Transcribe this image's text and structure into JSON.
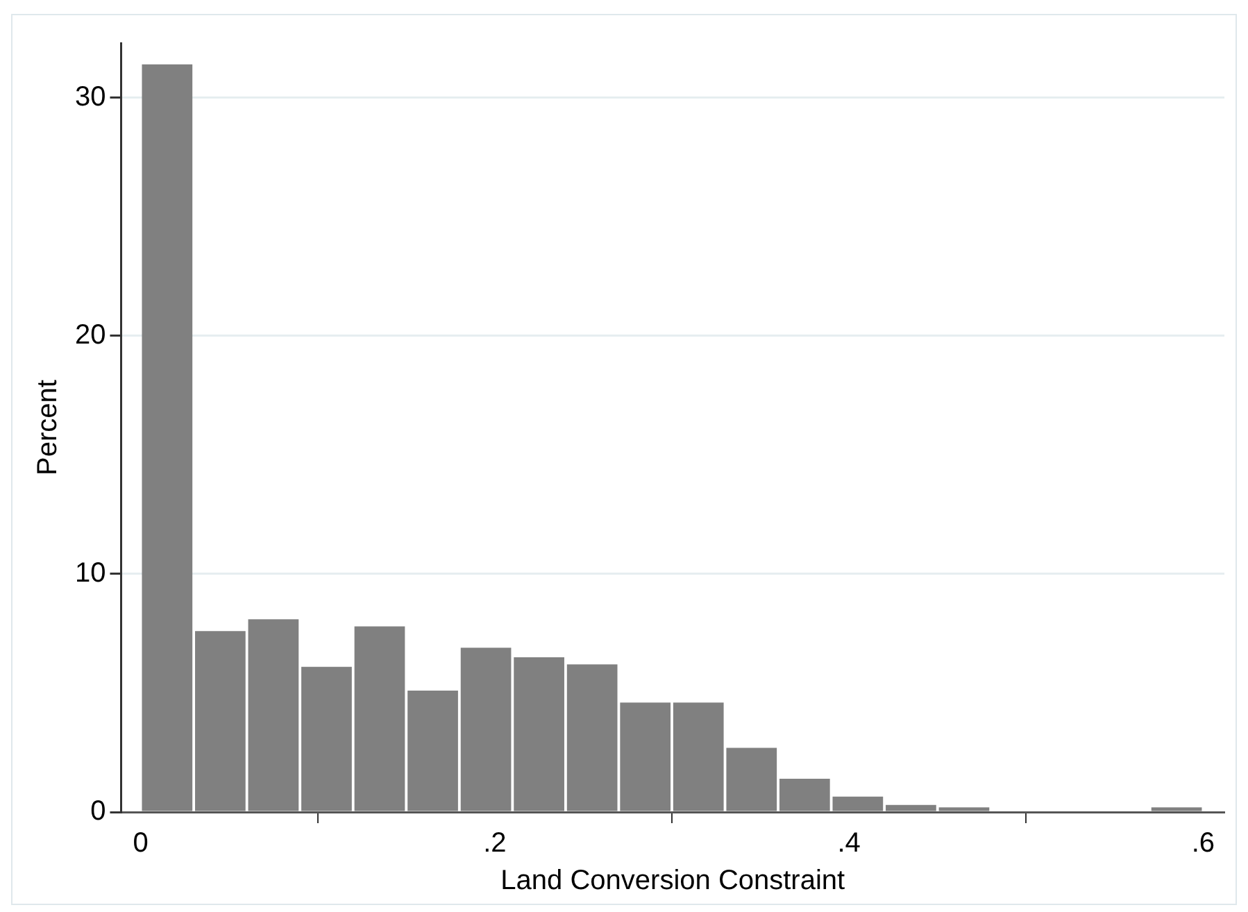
{
  "chart_data": {
    "type": "histogram",
    "xlabel": "Land Conversion Constraint",
    "ylabel": "Percent",
    "bins": [
      0,
      0.03,
      0.06,
      0.09,
      0.12,
      0.15,
      0.18,
      0.21,
      0.24,
      0.27,
      0.3,
      0.33,
      0.36,
      0.39,
      0.42,
      0.45,
      0.48,
      0.51,
      0.54,
      0.57,
      0.6
    ],
    "values": [
      31.4,
      7.6,
      8.1,
      6.1,
      7.8,
      5.1,
      6.9,
      6.5,
      6.2,
      4.6,
      4.6,
      2.7,
      1.4,
      0.65,
      0.3,
      0.2,
      0,
      0,
      0,
      0.2
    ],
    "color": "#808080",
    "xlim": [
      -0.011,
      0.612
    ],
    "xticks": [
      {
        "value": 0,
        "label": "0"
      },
      {
        "value": 0.2,
        "label": ".2"
      },
      {
        "value": 0.4,
        "label": ".4"
      },
      {
        "value": 0.6,
        "label": ".6"
      }
    ],
    "ylim": [
      0,
      32.3
    ],
    "yticks": [
      0,
      10,
      20,
      30
    ],
    "grid": "y"
  }
}
